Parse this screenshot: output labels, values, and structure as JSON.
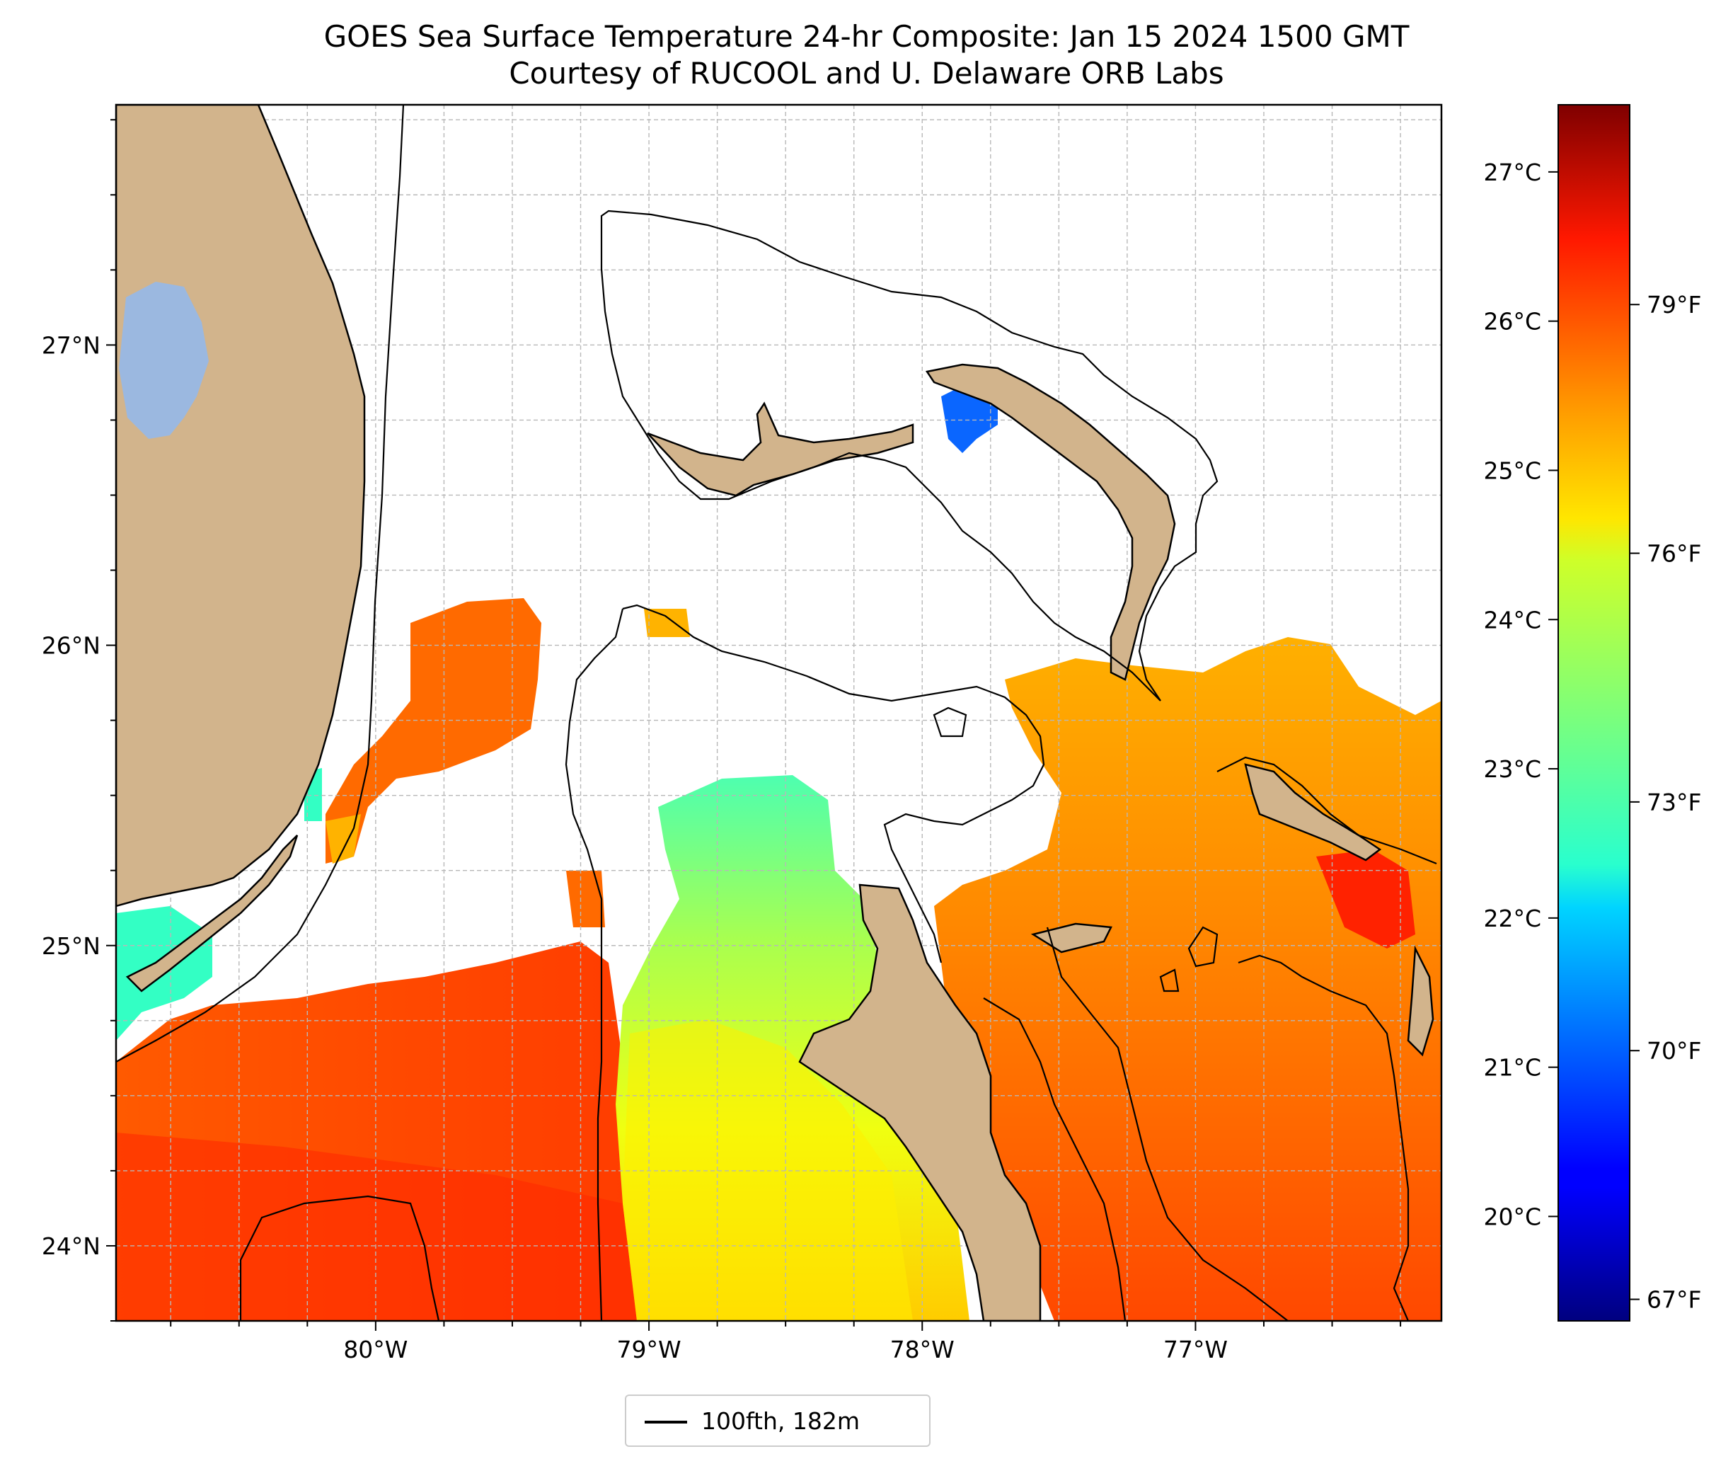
{
  "title": {
    "line1": "GOES Sea Surface Temperature 24-hr Composite: Jan 15 2024 1500 GMT",
    "line2": "Courtesy of RUCOOL and U. Delaware ORB Labs"
  },
  "map": {
    "lon_range": [
      -80.95,
      -76.1
    ],
    "lat_range": [
      23.75,
      27.8
    ],
    "lon_ticks": [
      {
        "value": -80,
        "label": "80°W"
      },
      {
        "value": -79,
        "label": "79°W"
      },
      {
        "value": -78,
        "label": "78°W"
      },
      {
        "value": -77,
        "label": "77°W"
      }
    ],
    "lat_ticks": [
      {
        "value": 24,
        "label": "24°N"
      },
      {
        "value": 25,
        "label": "25°N"
      },
      {
        "value": 26,
        "label": "26°N"
      },
      {
        "value": 27,
        "label": "27°N"
      }
    ],
    "gridlines": true,
    "colors": {
      "land": "#d2b48c",
      "lake": "#9bb8e0",
      "no_data": "#ffffff",
      "coastline": "#000000"
    }
  },
  "colorbar": {
    "colormap": "jet",
    "celsius_ticks": [
      {
        "value": 20,
        "label": "20°C"
      },
      {
        "value": 21,
        "label": "21°C"
      },
      {
        "value": 22,
        "label": "22°C"
      },
      {
        "value": 23,
        "label": "23°C"
      },
      {
        "value": 24,
        "label": "24°C"
      },
      {
        "value": 25,
        "label": "25°C"
      },
      {
        "value": 26,
        "label": "26°C"
      },
      {
        "value": 27,
        "label": "27°C"
      }
    ],
    "fahrenheit_ticks": [
      {
        "value": 67,
        "label": "67°F"
      },
      {
        "value": 70,
        "label": "70°F"
      },
      {
        "value": 73,
        "label": "73°F"
      },
      {
        "value": 76,
        "label": "76°F"
      },
      {
        "value": 79,
        "label": "79°F"
      }
    ]
  },
  "legend": {
    "entries": [
      {
        "label": "100fth, 182m",
        "color": "#000000"
      }
    ]
  }
}
